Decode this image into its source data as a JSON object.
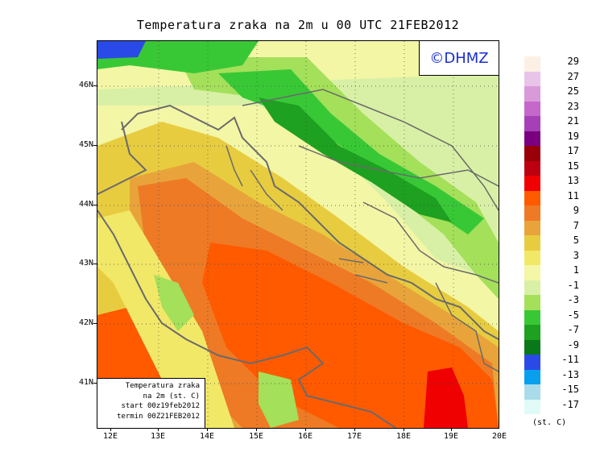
{
  "title": "Temperatura zraka na 2m u 00 UTC 21FEB2012",
  "logo": "©DHMZ",
  "info_box": {
    "line1": "Temperatura zraka",
    "line2": "na 2m (st. C)",
    "line3": "start 00z19feb2012",
    "line4": "termin 00Z21FEB2012"
  },
  "lat_labels": [
    "46N",
    "45N",
    "44N",
    "43N",
    "42N",
    "41N"
  ],
  "lon_labels": [
    "12E",
    "13E",
    "14E",
    "15E",
    "16E",
    "17E",
    "18E",
    "19E",
    "20E"
  ],
  "legend": {
    "unit": "(st. C)",
    "labels": [
      "29",
      "27",
      "25",
      "23",
      "21",
      "19",
      "17",
      "15",
      "13",
      "11",
      "9",
      "7",
      "5",
      "3",
      "1",
      "-1",
      "-3",
      "-5",
      "-7",
      "-9",
      "-11",
      "-13",
      "-15",
      "-17"
    ],
    "colors": [
      "#fcf0e4",
      "#e8c4e8",
      "#d89ad8",
      "#c468cc",
      "#a640b6",
      "#7a0080",
      "#9a0008",
      "#bc0010",
      "#f00000",
      "#ff5a00",
      "#ee7a26",
      "#e8a43a",
      "#e8cc40",
      "#f2e868",
      "#f4f7a6",
      "#d8f0a6",
      "#a4e05a",
      "#38c836",
      "#1ea020",
      "#087818",
      "#2a4ae8",
      "#08a0ec",
      "#a8dcea",
      "#e0faf8"
    ]
  }
}
